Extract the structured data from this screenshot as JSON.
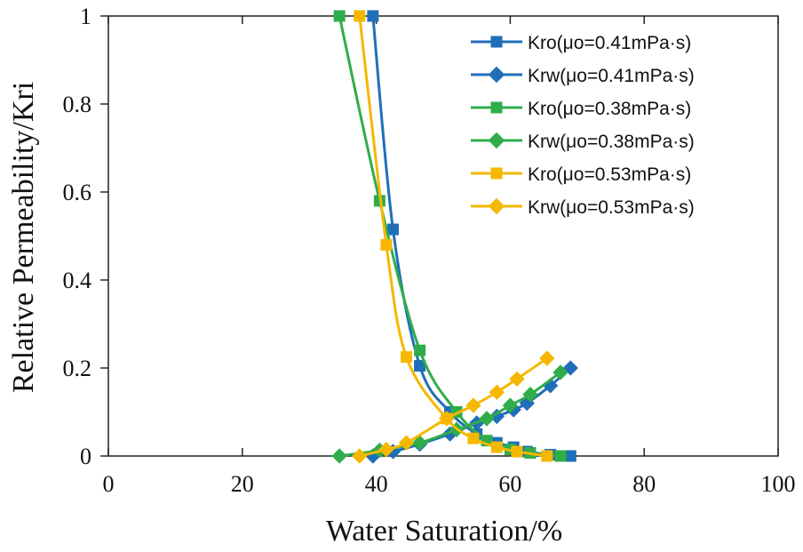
{
  "chart_data": {
    "type": "line",
    "xlabel": "Water Saturation/%",
    "ylabel": "Relative Permeability/Kri",
    "xlim": [
      0,
      100
    ],
    "ylim": [
      0,
      1
    ],
    "xticks": [
      0,
      20,
      40,
      60,
      80,
      100
    ],
    "yticks": [
      0,
      0.2,
      0.4,
      0.6,
      0.8,
      1
    ],
    "ytick_labels": [
      "0",
      "0.2",
      "0.4",
      "0.6",
      "0.8",
      "1"
    ],
    "grid": false,
    "legend_position": "top-right",
    "series": [
      {
        "name": "Kro(μo=0.41mPa·s)",
        "color": "#1f6fb8",
        "marker": "square",
        "x": [
          39.5,
          42.5,
          46.5,
          51.0,
          55.0,
          58.0,
          60.5,
          62.5,
          66.0,
          69.0
        ],
        "y": [
          1.0,
          0.515,
          0.205,
          0.1,
          0.05,
          0.03,
          0.02,
          0.01,
          0.003,
          0.0
        ]
      },
      {
        "name": "Krw(μo=0.41mPa·s)",
        "color": "#1f6fb8",
        "marker": "diamond",
        "x": [
          39.5,
          42.5,
          46.5,
          51.0,
          55.0,
          58.0,
          60.5,
          62.5,
          66.0,
          69.0
        ],
        "y": [
          0.0,
          0.01,
          0.027,
          0.05,
          0.075,
          0.09,
          0.105,
          0.12,
          0.16,
          0.2
        ]
      },
      {
        "name": "Kro(μo=0.38mPa·s)",
        "color": "#2fad4a",
        "marker": "square",
        "x": [
          34.5,
          40.5,
          46.5,
          52.0,
          56.5,
          60.0,
          63.0,
          67.5
        ],
        "y": [
          1.0,
          0.58,
          0.24,
          0.1,
          0.035,
          0.015,
          0.007,
          0.0
        ]
      },
      {
        "name": "Krw(μo=0.38mPa·s)",
        "color": "#2fad4a",
        "marker": "diamond",
        "x": [
          34.5,
          40.5,
          46.5,
          52.0,
          56.5,
          60.0,
          63.0,
          67.5
        ],
        "y": [
          0.0,
          0.013,
          0.03,
          0.06,
          0.085,
          0.115,
          0.14,
          0.19
        ]
      },
      {
        "name": "Kro(μo=0.53mPa·s)",
        "color": "#f5b800",
        "marker": "square",
        "x": [
          37.5,
          41.5,
          44.5,
          50.5,
          54.5,
          58.0,
          61.0,
          65.5
        ],
        "y": [
          1.0,
          0.48,
          0.225,
          0.085,
          0.04,
          0.02,
          0.01,
          0.0
        ]
      },
      {
        "name": "Krw(μo=0.53mPa·s)",
        "color": "#f5b800",
        "marker": "diamond",
        "x": [
          37.5,
          41.5,
          44.5,
          50.5,
          54.5,
          58.0,
          61.0,
          65.5
        ],
        "y": [
          0.0,
          0.015,
          0.03,
          0.085,
          0.115,
          0.145,
          0.175,
          0.222
        ]
      }
    ]
  }
}
